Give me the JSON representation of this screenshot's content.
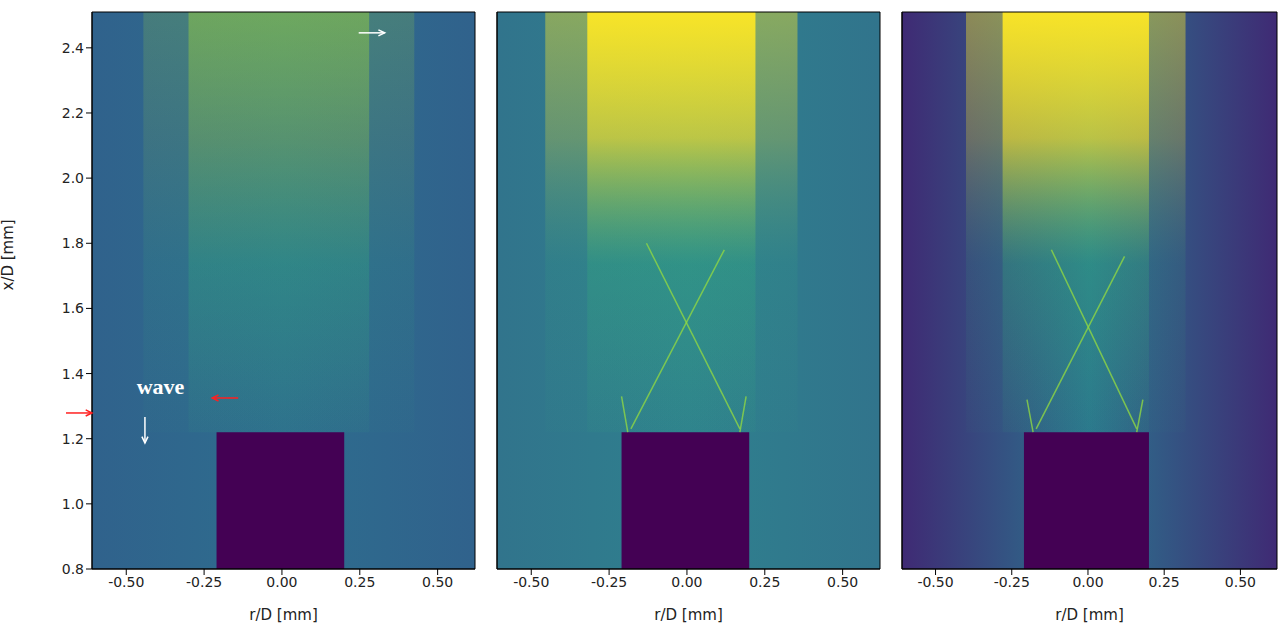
{
  "chart_data": [
    {
      "type": "image",
      "xlabel": "r/D [mm]",
      "ylabel": "x/D [mm]",
      "xlim": [
        -0.61,
        0.62
      ],
      "ylim": [
        0.8,
        2.51
      ],
      "xticks": [
        {
          "value": -0.5,
          "label": "-0.50"
        },
        {
          "value": -0.25,
          "label": "-0.25"
        },
        {
          "value": 0,
          "label": "0.00"
        },
        {
          "value": 0.25,
          "label": "0.25"
        },
        {
          "value": 0.5,
          "label": "0.50"
        }
      ],
      "yticks": [
        0.8,
        {
          "value": 1,
          "label": "1.0"
        },
        1.2,
        1.4,
        1.6,
        1.8,
        {
          "value": 2,
          "label": "2.0"
        },
        2.2,
        2.4
      ],
      "nozzle": {
        "r": [
          -0.21,
          0.2
        ],
        "x": [
          0.8,
          1.22
        ]
      },
      "plume": {
        "r": [
          -0.3,
          0.28
        ],
        "x": [
          1.22,
          2.51
        ]
      },
      "shocks": [],
      "annotations": [
        {
          "text": "wave",
          "r": -0.39,
          "x": 1.353,
          "color": "#ffffff"
        }
      ],
      "arrows": [
        {
          "r": -0.61,
          "x": 1.279,
          "direction": "right",
          "color": "#ff2020"
        },
        {
          "r": -0.224,
          "x": 1.325,
          "direction": "left",
          "color": "#ff2020"
        },
        {
          "r": -0.44,
          "x": 1.187,
          "direction": "down",
          "color": "#ffffff"
        },
        {
          "r": 0.33,
          "x": 2.446,
          "direction": "right",
          "color": "#ffffff"
        }
      ]
    },
    {
      "type": "image",
      "xlabel": "r/D [mm]",
      "tick_labels": "x",
      "xlim": [
        -0.61,
        0.62
      ],
      "ylim": [
        0.8,
        2.51
      ],
      "xticks": [
        {
          "value": -0.5,
          "label": "-0.50"
        },
        {
          "value": -0.25,
          "label": "-0.25"
        },
        {
          "value": 0,
          "label": "0.00"
        },
        {
          "value": 0.25,
          "label": "0.25"
        },
        {
          "value": 0.5,
          "label": "0.50"
        }
      ],
      "yticks": [
        0.8,
        {
          "value": 1,
          "label": "1.0"
        },
        1.2,
        1.4,
        1.6,
        1.8,
        {
          "value": 2,
          "label": "2.0"
        },
        2.2,
        2.4
      ],
      "nozzle": {
        "r": [
          -0.21,
          0.2
        ],
        "x": [
          0.8,
          1.22
        ]
      },
      "plume": {
        "r": [
          -0.32,
          0.22
        ],
        "x": [
          1.22,
          2.51
        ]
      },
      "shocks": [
        [
          [
            -0.18,
            1.23
          ],
          [
            0.12,
            1.78
          ]
        ],
        [
          [
            0.17,
            1.23
          ],
          [
            -0.13,
            1.8
          ]
        ],
        [
          [
            -0.19,
            1.22
          ],
          [
            -0.21,
            1.33
          ]
        ],
        [
          [
            0.17,
            1.22
          ],
          [
            0.19,
            1.33
          ]
        ]
      ],
      "annotations": [],
      "arrows": []
    },
    {
      "type": "image",
      "xlabel": "r/D [mm]",
      "tick_labels": "x",
      "xlim": [
        -0.61,
        0.62
      ],
      "ylim": [
        0.8,
        2.51
      ],
      "xticks": [
        {
          "value": -0.5,
          "label": "-0.50"
        },
        {
          "value": -0.25,
          "label": "-0.25"
        },
        {
          "value": 0,
          "label": "0.00"
        },
        {
          "value": 0.25,
          "label": "0.25"
        },
        {
          "value": 0.5,
          "label": "0.50"
        }
      ],
      "yticks": [
        0.8,
        {
          "value": 1,
          "label": "1.0"
        },
        1.2,
        1.4,
        1.6,
        1.8,
        {
          "value": 2,
          "label": "2.0"
        },
        2.2,
        2.4
      ],
      "nozzle": {
        "r": [
          -0.21,
          0.2
        ],
        "x": [
          0.8,
          1.22
        ]
      },
      "plume": {
        "r": [
          -0.28,
          0.2
        ],
        "x": [
          1.22,
          2.51
        ]
      },
      "shocks": [
        [
          [
            -0.17,
            1.23
          ],
          [
            0.12,
            1.76
          ]
        ],
        [
          [
            0.16,
            1.23
          ],
          [
            -0.12,
            1.78
          ]
        ],
        [
          [
            -0.18,
            1.22
          ],
          [
            -0.2,
            1.32
          ]
        ],
        [
          [
            0.16,
            1.22
          ],
          [
            0.18,
            1.32
          ]
        ]
      ],
      "annotations": [],
      "arrows": []
    }
  ]
}
